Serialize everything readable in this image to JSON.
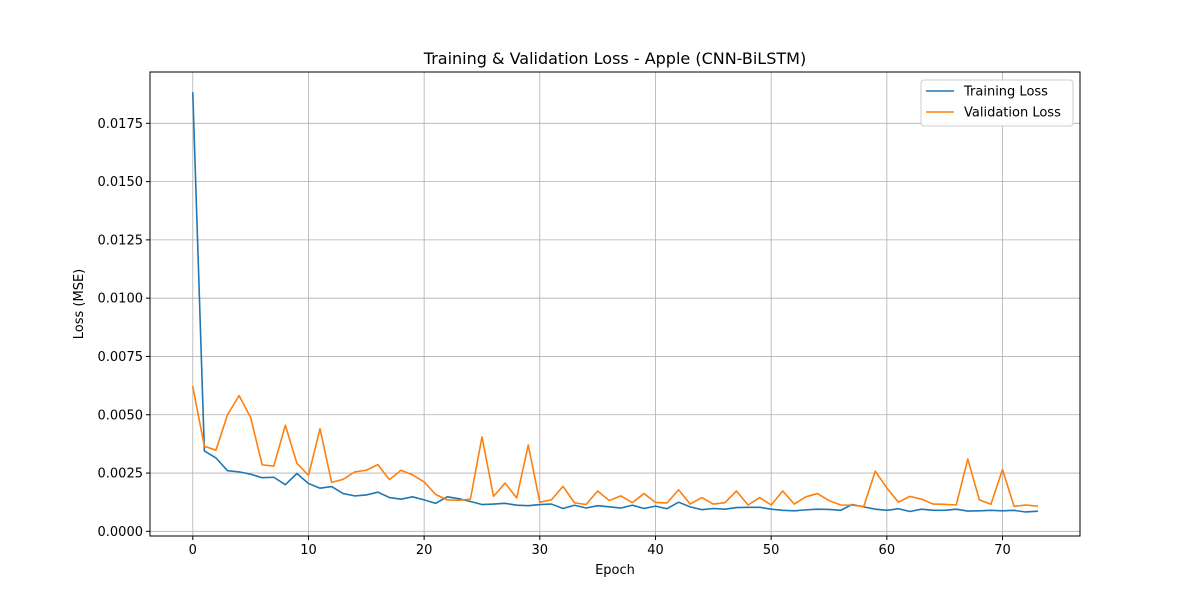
{
  "chart_data": {
    "type": "line",
    "title": "Training & Validation Loss - Apple (CNN-BiLSTM)",
    "xlabel": "Epoch",
    "ylabel": "Loss (MSE)",
    "xlim": [
      -3.7,
      76.7
    ],
    "ylim": [
      -0.0002,
      0.0197
    ],
    "xticks": [
      0,
      10,
      20,
      30,
      40,
      50,
      60,
      70
    ],
    "xtick_labels": [
      "0",
      "10",
      "20",
      "30",
      "40",
      "50",
      "60",
      "70"
    ],
    "yticks": [
      0.0,
      0.0025,
      0.005,
      0.0075,
      0.01,
      0.0125,
      0.015,
      0.0175
    ],
    "ytick_labels": [
      "0.0000",
      "0.0025",
      "0.0050",
      "0.0075",
      "0.0100",
      "0.0125",
      "0.0150",
      "0.0175"
    ],
    "grid": true,
    "legend_position": "top-right",
    "x": [
      0,
      1,
      2,
      3,
      4,
      5,
      6,
      7,
      8,
      9,
      10,
      11,
      12,
      13,
      14,
      15,
      16,
      17,
      18,
      19,
      20,
      21,
      22,
      23,
      24,
      25,
      26,
      27,
      28,
      29,
      30,
      31,
      32,
      33,
      34,
      35,
      36,
      37,
      38,
      39,
      40,
      41,
      42,
      43,
      44,
      45,
      46,
      47,
      48,
      49,
      50,
      51,
      52,
      53,
      54,
      55,
      56,
      57,
      58,
      59,
      60,
      61,
      62,
      63,
      64,
      65,
      66,
      67,
      68,
      69,
      70,
      71,
      72,
      73
    ],
    "series": [
      {
        "name": "Training Loss",
        "color": "#1f77b4",
        "values": [
          0.0188,
          0.00345,
          0.00315,
          0.0026,
          0.00255,
          0.00245,
          0.0023,
          0.00232,
          0.002,
          0.00248,
          0.00205,
          0.00185,
          0.00192,
          0.00162,
          0.00152,
          0.00156,
          0.00168,
          0.00145,
          0.00138,
          0.00148,
          0.00135,
          0.0012,
          0.00148,
          0.0014,
          0.00128,
          0.00115,
          0.00117,
          0.0012,
          0.00112,
          0.0011,
          0.00115,
          0.00117,
          0.00098,
          0.00112,
          0.001,
          0.0011,
          0.00105,
          0.001,
          0.00112,
          0.00098,
          0.00108,
          0.00097,
          0.00125,
          0.00105,
          0.00093,
          0.00098,
          0.00095,
          0.00102,
          0.00103,
          0.00103,
          0.00095,
          0.0009,
          0.00088,
          0.00092,
          0.00095,
          0.00094,
          0.0009,
          0.00115,
          0.00105,
          0.00095,
          0.0009,
          0.00097,
          0.00085,
          0.00095,
          0.0009,
          0.0009,
          0.00095,
          0.00087,
          0.00088,
          0.0009,
          0.00088,
          0.0009,
          0.00083,
          0.00086
        ]
      },
      {
        "name": "Validation Loss",
        "color": "#ff7f0e",
        "values": [
          0.0062,
          0.00365,
          0.00348,
          0.005,
          0.00582,
          0.00488,
          0.00285,
          0.0028,
          0.00455,
          0.00292,
          0.0024,
          0.0044,
          0.0021,
          0.00223,
          0.00255,
          0.00262,
          0.00286,
          0.00222,
          0.00262,
          0.00242,
          0.00212,
          0.00158,
          0.00135,
          0.00133,
          0.00138,
          0.00405,
          0.0015,
          0.00207,
          0.00143,
          0.0037,
          0.00125,
          0.00135,
          0.00193,
          0.00122,
          0.00115,
          0.00173,
          0.00132,
          0.00152,
          0.00123,
          0.00162,
          0.00124,
          0.00122,
          0.00178,
          0.00117,
          0.00145,
          0.00117,
          0.00123,
          0.00173,
          0.00113,
          0.00145,
          0.00113,
          0.00173,
          0.00117,
          0.00148,
          0.00162,
          0.00132,
          0.00113,
          0.00112,
          0.00106,
          0.00258,
          0.00186,
          0.00125,
          0.0015,
          0.00138,
          0.00117,
          0.00116,
          0.00113,
          0.0031,
          0.00135,
          0.00116,
          0.00265,
          0.00107,
          0.00113,
          0.00108
        ]
      }
    ]
  }
}
